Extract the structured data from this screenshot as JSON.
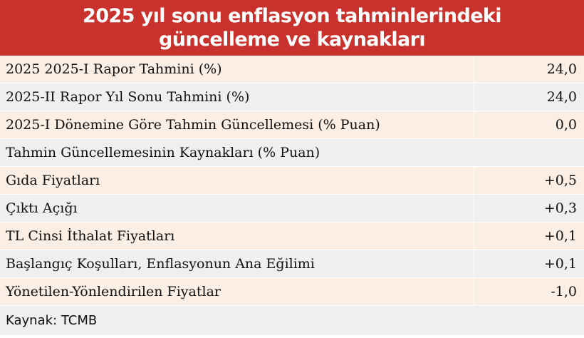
{
  "title": "2025 yıl sonu enflasyon tahminlerindeki güncelleme ve kaynakları",
  "rows": [
    {
      "label": "2025 2025-I Rapor Tahmini (%)",
      "value": "24,0"
    },
    {
      "label": "2025-II Rapor Yıl Sonu Tahmini (%)",
      "value": "24,0"
    },
    {
      "label": "2025-I Dönemine Göre Tahmin Güncellemesi (% Puan)",
      "value": "0,0"
    },
    {
      "label": "Tahmin Güncellemesinin Kaynakları (% Puan)",
      "value": ""
    },
    {
      "label": "Gıda Fiyatları",
      "value": "+0,5"
    },
    {
      "label": "Çıktı Açığı",
      "value": "+0,3"
    },
    {
      "label": "TL Cinsi İthalat Fiyatları",
      "value": "+0,1"
    },
    {
      "label": "Başlangıç Koşulları, Enflasyonun Ana Eğilimi",
      "value": "+0,1"
    },
    {
      "label": "Yönetilen-Yönlendirilen Fiyatlar",
      "value": "-1,0"
    }
  ],
  "source": "Kaynak: TCMB",
  "colors": {
    "header_bg": "#c8312c",
    "row_odd_bg": "#fbeee4",
    "row_even_bg": "#efefef"
  }
}
